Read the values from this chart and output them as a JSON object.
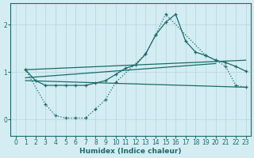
{
  "xlabel": "Humidex (Indice chaleur)",
  "background_color": "#d4edf2",
  "grid_color": "#b8d8e0",
  "line_color": "#1a6b6b",
  "xlim": [
    -0.5,
    23.5
  ],
  "ylim": [
    -0.35,
    2.45
  ],
  "yticks": [
    0,
    1,
    2
  ],
  "xticks": [
    0,
    1,
    2,
    3,
    4,
    5,
    6,
    7,
    8,
    9,
    10,
    11,
    12,
    13,
    14,
    15,
    16,
    17,
    18,
    19,
    20,
    21,
    22,
    23
  ],
  "curve1_x": [
    1,
    2,
    3,
    4,
    5,
    6,
    7,
    8,
    9,
    10,
    11,
    12,
    13,
    14,
    15,
    16,
    17,
    18,
    19,
    20,
    21,
    22,
    23
  ],
  "curve1_y": [
    1.05,
    0.82,
    0.72,
    0.72,
    0.72,
    0.72,
    0.72,
    0.77,
    0.82,
    0.95,
    1.08,
    1.15,
    1.38,
    1.78,
    2.05,
    2.22,
    1.65,
    1.42,
    1.35,
    1.25,
    1.2,
    1.12,
    1.02
  ],
  "curve2_x": [
    1,
    3,
    4,
    5,
    6,
    7,
    8,
    9,
    10,
    13,
    14,
    15,
    19,
    20,
    21,
    22,
    23
  ],
  "curve2_y": [
    1.05,
    0.32,
    0.08,
    0.03,
    0.03,
    0.03,
    0.22,
    0.42,
    0.78,
    1.38,
    1.78,
    2.22,
    1.35,
    1.25,
    1.12,
    0.72,
    0.68
  ],
  "line1_x": [
    1,
    23
  ],
  "line1_y": [
    0.82,
    0.68
  ],
  "line2_x": [
    1,
    23
  ],
  "line2_y": [
    1.05,
    1.25
  ],
  "line3_x": [
    1,
    20
  ],
  "line3_y": [
    0.88,
    1.18
  ]
}
